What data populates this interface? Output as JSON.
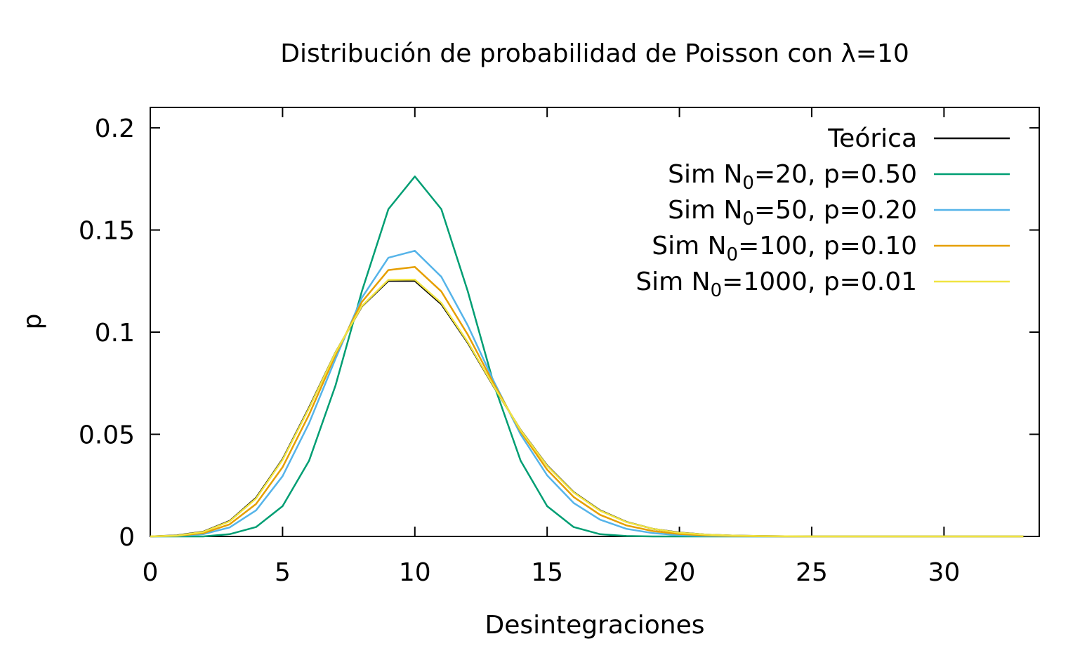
{
  "chart_data": {
    "type": "line",
    "title": "Distribución de probabilidad de Poisson con λ=10",
    "xlabel": "Desintegraciones",
    "ylabel": "p",
    "xlim": [
      0,
      33.6
    ],
    "ylim": [
      0,
      0.21
    ],
    "xticks": [
      {
        "value": 0,
        "label": "0"
      },
      {
        "value": 5,
        "label": "5"
      },
      {
        "value": 10,
        "label": "10"
      },
      {
        "value": 15,
        "label": "15"
      },
      {
        "value": 20,
        "label": "20"
      },
      {
        "value": 25,
        "label": "25"
      },
      {
        "value": 30,
        "label": "30"
      }
    ],
    "yticks": [
      {
        "value": 0,
        "label": "0"
      },
      {
        "value": 0.05,
        "label": "0.05"
      },
      {
        "value": 0.1,
        "label": "0.1"
      },
      {
        "value": 0.15,
        "label": "0.15"
      },
      {
        "value": 0.2,
        "label": "0.2"
      }
    ],
    "grid": false,
    "legend_position": "top-right",
    "x": [
      0,
      1,
      2,
      3,
      4,
      5,
      6,
      7,
      8,
      9,
      10,
      11,
      12,
      13,
      14,
      15,
      16,
      17,
      18,
      19,
      20,
      21,
      22,
      23,
      24,
      25,
      26,
      27,
      28,
      29,
      30,
      31,
      32,
      33
    ],
    "series": [
      {
        "name": "Teórica",
        "label_prefix": "Teórica",
        "label_sub": "",
        "label_suffix": "",
        "color": "#000000",
        "values": [
          0.0,
          0.0005,
          0.0023,
          0.0076,
          0.0189,
          0.0378,
          0.0631,
          0.0901,
          0.1126,
          0.1251,
          0.1251,
          0.1137,
          0.0948,
          0.0729,
          0.0521,
          0.0347,
          0.0217,
          0.0128,
          0.0071,
          0.0037,
          0.0019,
          0.0009,
          0.0004,
          0.0002,
          0.0001,
          0,
          0,
          0,
          0,
          0,
          0,
          0,
          0,
          0
        ]
      },
      {
        "name": "Sim N0=20, p=0.50",
        "label_prefix": "Sim N",
        "label_sub": "0",
        "label_suffix": "=20, p=0.50",
        "color": "#009e73",
        "values": [
          0,
          0,
          0,
          0.0011,
          0.0046,
          0.0148,
          0.037,
          0.0739,
          0.1201,
          0.1602,
          0.1762,
          0.1602,
          0.1201,
          0.0739,
          0.037,
          0.0148,
          0.0046,
          0.0011,
          0.0002,
          0,
          0,
          0,
          0,
          0,
          0,
          0,
          0,
          0,
          0,
          0,
          0,
          0,
          0,
          0
        ]
      },
      {
        "name": "Sim N0=50, p=0.20",
        "label_prefix": "Sim N",
        "label_sub": "0",
        "label_suffix": "=50, p=0.20",
        "color": "#56b4e9",
        "values": [
          0,
          0.0002,
          0.0011,
          0.0044,
          0.0128,
          0.0295,
          0.0554,
          0.087,
          0.1169,
          0.1364,
          0.1398,
          0.1271,
          0.1033,
          0.0755,
          0.0499,
          0.0299,
          0.0164,
          0.0082,
          0.0037,
          0.0016,
          0.0006,
          0.0002,
          0.0001,
          0,
          0,
          0,
          0,
          0,
          0,
          0,
          0,
          0,
          0,
          0
        ]
      },
      {
        "name": "Sim N0=100, p=0.10",
        "label_prefix": "Sim N",
        "label_sub": "0",
        "label_suffix": "=100, p=0.10",
        "color": "#e69f00",
        "values": [
          0,
          0.0003,
          0.0016,
          0.0059,
          0.0159,
          0.0339,
          0.0596,
          0.0889,
          0.1148,
          0.1304,
          0.1319,
          0.1199,
          0.0988,
          0.0743,
          0.0513,
          0.0327,
          0.0193,
          0.0106,
          0.0054,
          0.0026,
          0.0012,
          0.0005,
          0.0002,
          0.0001,
          0,
          0,
          0,
          0,
          0,
          0,
          0,
          0,
          0,
          0
        ]
      },
      {
        "name": "Sim N0=1000, p=0.01",
        "label_prefix": "Sim N",
        "label_sub": "0",
        "label_suffix": "=1000, p=0.01",
        "color": "#f0e442",
        "values": [
          0,
          0.0004,
          0.0022,
          0.0074,
          0.0186,
          0.0375,
          0.0627,
          0.09,
          0.1128,
          0.1256,
          0.1257,
          0.1143,
          0.0952,
          0.0731,
          0.052,
          0.0345,
          0.0215,
          0.0126,
          0.007,
          0.0037,
          0.0018,
          0.0009,
          0.0004,
          0.0002,
          0.0001,
          0,
          0,
          0,
          0,
          0,
          0,
          0,
          0,
          0
        ]
      }
    ]
  }
}
